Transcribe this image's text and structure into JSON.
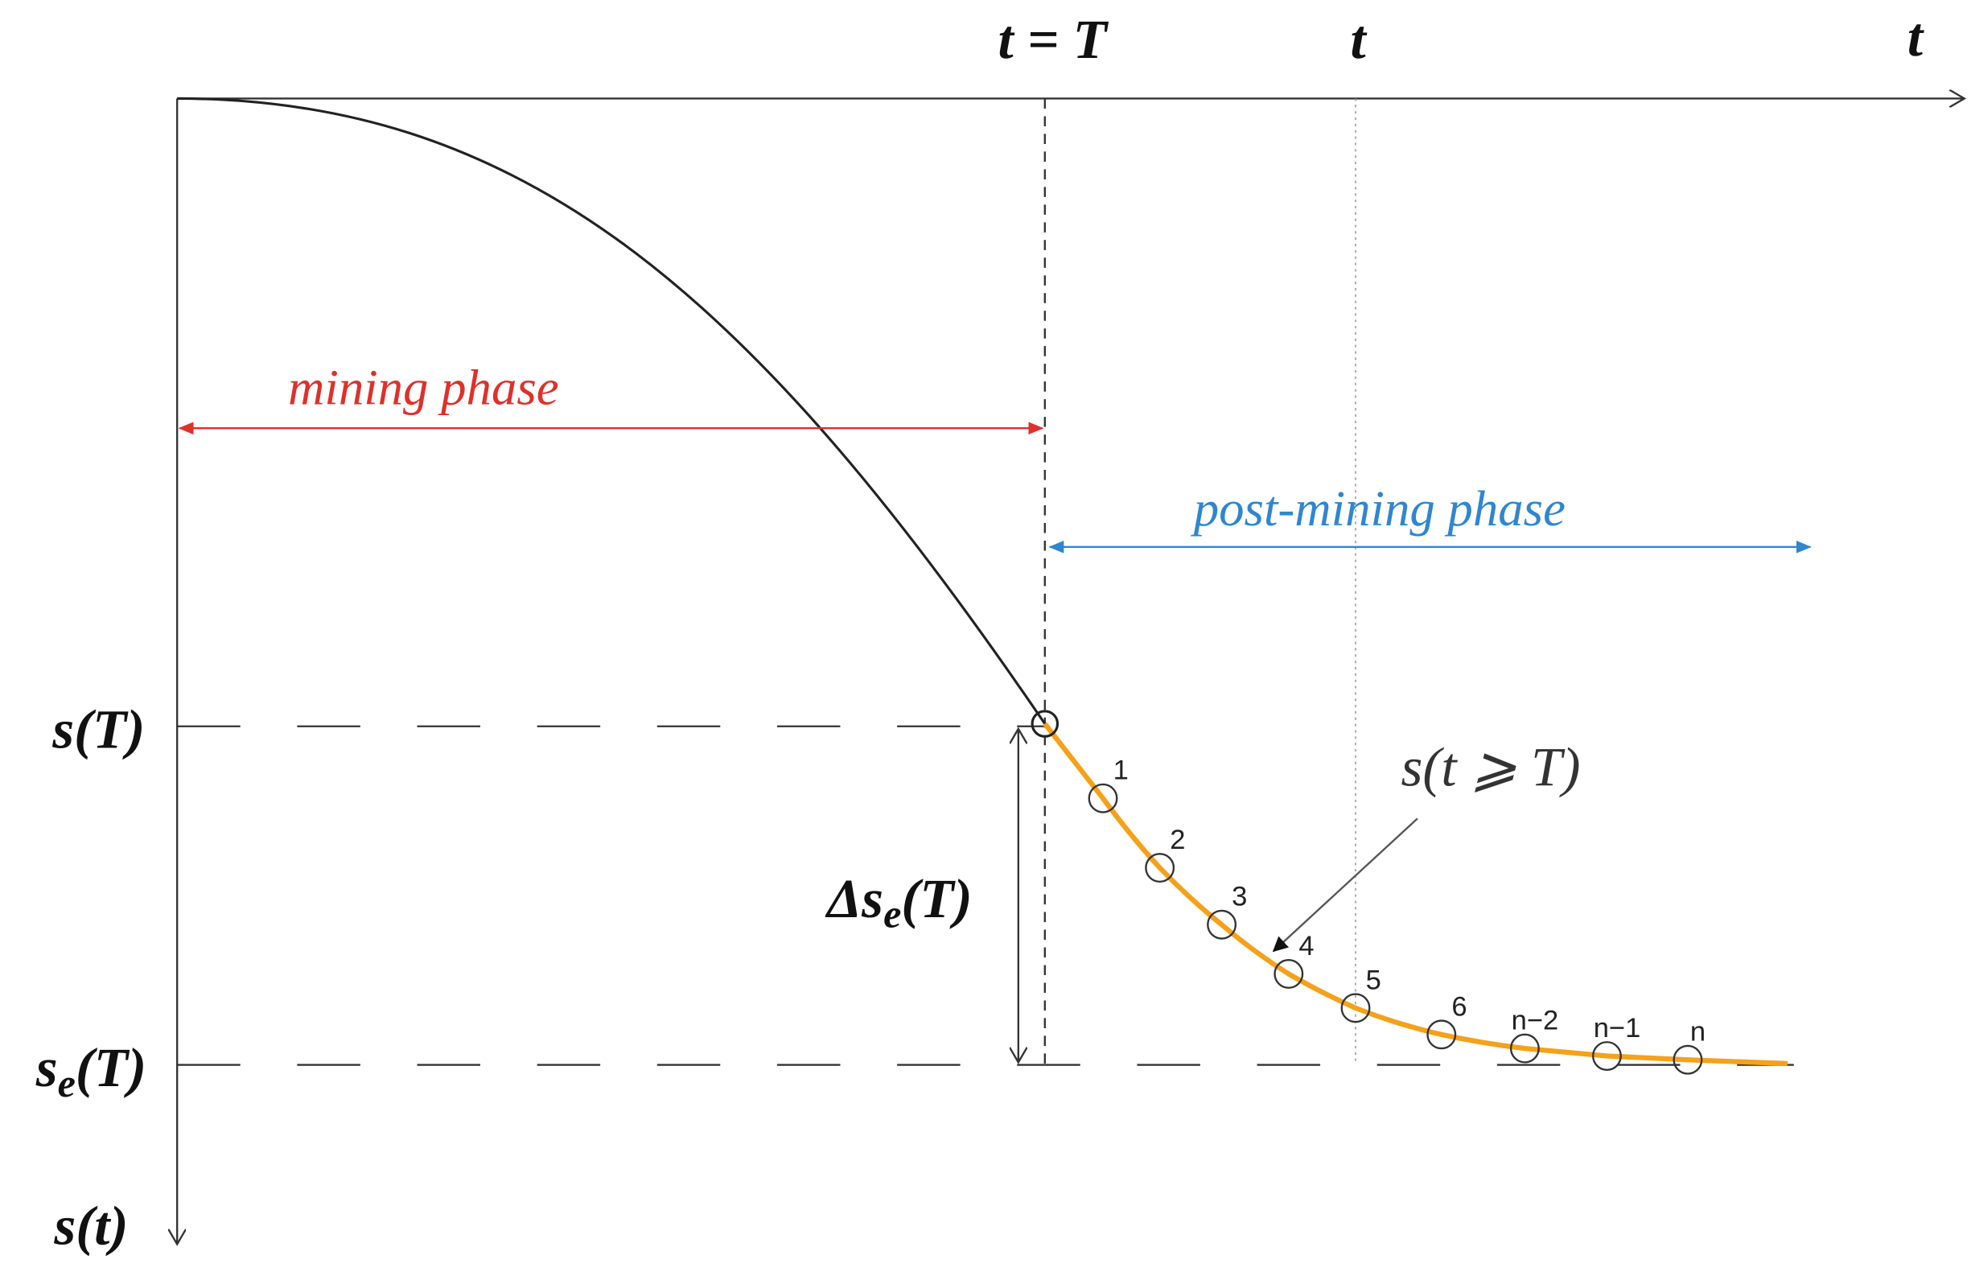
{
  "axes": {
    "t_top": "t = T",
    "t_mid": "t",
    "t_axis": "t",
    "s_axis": "s(t)"
  },
  "levels": {
    "s_T": "s(T)",
    "s_e_T": {
      "base": "s",
      "sub": "e",
      "rest": "(T)"
    }
  },
  "delta": {
    "base": "Δs",
    "sub": "e",
    "rest": "(T)"
  },
  "phases": {
    "mining": "mining phase",
    "post_mining": "post-mining phase"
  },
  "curve_label": "s(t ⩾ T)",
  "points": [
    "1",
    "2",
    "3",
    "4",
    "5",
    "6",
    "n−2",
    "n−1",
    "n"
  ]
}
